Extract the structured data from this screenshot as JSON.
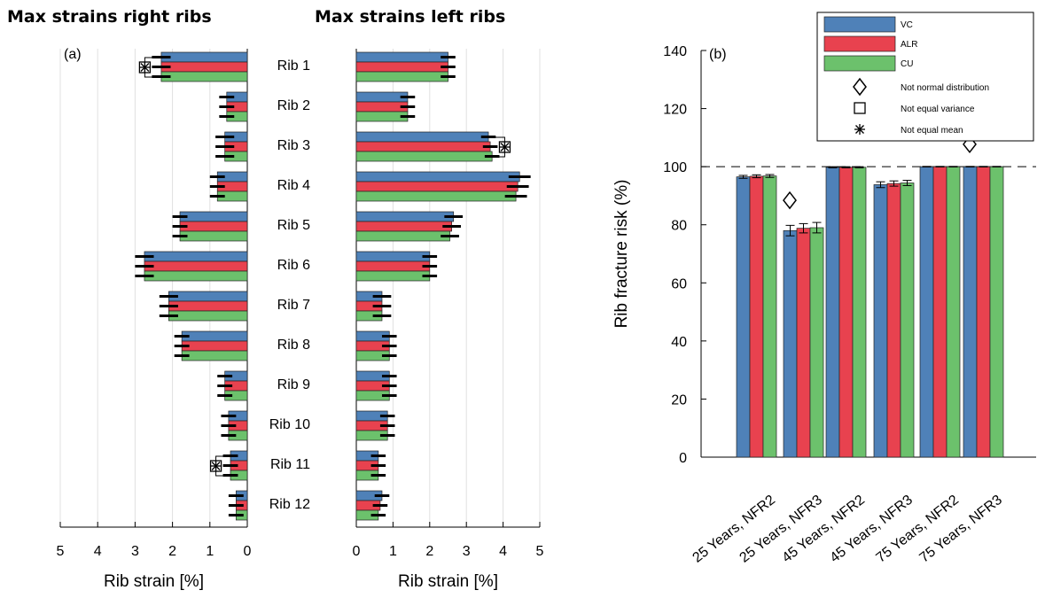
{
  "colors": {
    "VC": "#4f81b8",
    "ALR": "#e8424f",
    "CU": "#6cc16c"
  },
  "titles": {
    "right": "Max strains right ribs",
    "left": "Max strains left ribs"
  },
  "panel_labels": {
    "a": "(a)",
    "b": "(b)"
  },
  "chart_data": [
    {
      "type": "bar",
      "orientation": "horizontal",
      "title": "Max strains right ribs",
      "xlabel": "Rib strain [%]",
      "xlim": [
        0,
        5
      ],
      "x_reversed": true,
      "xticks": [
        "5",
        "4",
        "3",
        "2",
        "1",
        "0"
      ],
      "categories": [
        "Rib 1",
        "Rib 2",
        "Rib 3",
        "Rib 4",
        "Rib 5",
        "Rib 6",
        "Rib 7",
        "Rib 8",
        "Rib 9",
        "Rib 10",
        "Rib 11",
        "Rib 12"
      ],
      "series": [
        {
          "name": "VC",
          "values": [
            2.3,
            0.55,
            0.6,
            0.8,
            1.8,
            2.75,
            2.1,
            1.75,
            0.6,
            0.5,
            0.45,
            0.3
          ],
          "errors": [
            0.25,
            0.2,
            0.25,
            0.2,
            0.2,
            0.25,
            0.25,
            0.2,
            0.2,
            0.2,
            0.2,
            0.2
          ]
        },
        {
          "name": "ALR",
          "values": [
            2.3,
            0.55,
            0.6,
            0.8,
            1.8,
            2.75,
            2.1,
            1.75,
            0.6,
            0.5,
            0.45,
            0.3
          ],
          "errors": [
            0.25,
            0.2,
            0.25,
            0.2,
            0.2,
            0.25,
            0.25,
            0.2,
            0.2,
            0.2,
            0.2,
            0.2
          ]
        },
        {
          "name": "CU",
          "values": [
            2.3,
            0.55,
            0.6,
            0.8,
            1.8,
            2.75,
            2.1,
            1.75,
            0.6,
            0.5,
            0.45,
            0.3
          ],
          "errors": [
            0.25,
            0.2,
            0.25,
            0.2,
            0.2,
            0.25,
            0.25,
            0.2,
            0.2,
            0.2,
            0.2,
            0.2
          ]
        }
      ],
      "markers": [
        {
          "category": "Rib 1",
          "symbols": [
            "square",
            "star"
          ]
        },
        {
          "category": "Rib 11",
          "symbols": [
            "square",
            "star"
          ]
        }
      ],
      "grid": true
    },
    {
      "type": "bar",
      "orientation": "horizontal",
      "title": "Max strains left ribs",
      "xlabel": "Rib strain [%]",
      "xlim": [
        0,
        5
      ],
      "xticks": [
        "0",
        "1",
        "2",
        "3",
        "4",
        "5"
      ],
      "categories": [
        "Rib 1",
        "Rib 2",
        "Rib 3",
        "Rib 4",
        "Rib 5",
        "Rib 6",
        "Rib 7",
        "Rib 8",
        "Rib 9",
        "Rib 10",
        "Rib 11",
        "Rib 12"
      ],
      "series": [
        {
          "name": "VC",
          "values": [
            2.5,
            1.4,
            3.6,
            4.45,
            2.65,
            2.0,
            0.7,
            0.9,
            0.9,
            0.85,
            0.6,
            0.7
          ],
          "errors": [
            0.2,
            0.2,
            0.2,
            0.3,
            0.25,
            0.2,
            0.25,
            0.2,
            0.2,
            0.2,
            0.2,
            0.2
          ]
        },
        {
          "name": "ALR",
          "values": [
            2.5,
            1.4,
            3.65,
            4.4,
            2.6,
            2.0,
            0.7,
            0.9,
            0.9,
            0.85,
            0.6,
            0.65
          ],
          "errors": [
            0.2,
            0.2,
            0.2,
            0.3,
            0.25,
            0.2,
            0.25,
            0.2,
            0.2,
            0.2,
            0.2,
            0.2
          ]
        },
        {
          "name": "CU",
          "values": [
            2.5,
            1.4,
            3.7,
            4.35,
            2.55,
            2.0,
            0.7,
            0.9,
            0.9,
            0.85,
            0.6,
            0.6
          ],
          "errors": [
            0.2,
            0.2,
            0.2,
            0.3,
            0.25,
            0.2,
            0.25,
            0.2,
            0.2,
            0.2,
            0.2,
            0.2
          ]
        }
      ],
      "markers": [
        {
          "category": "Rib 3",
          "symbols": [
            "square",
            "star"
          ]
        }
      ],
      "grid": true
    },
    {
      "type": "bar",
      "ylabel": "Rib fracture risk (%)",
      "ylim": [
        0,
        140
      ],
      "yticks": [
        "0",
        "20",
        "40",
        "60",
        "80",
        "100",
        "120",
        "140"
      ],
      "reference_line": 100,
      "categories": [
        "25 Years, NFR2",
        "25 Years, NFR3",
        "45 Years, NFR2",
        "45 Years, NFR3",
        "75 Years, NFR2",
        "75 Years, NFR3"
      ],
      "series": [
        {
          "name": "VC",
          "values": [
            96.5,
            78,
            99.8,
            93.8,
            100,
            100
          ],
          "errors": [
            0.5,
            1.8,
            0.2,
            1.0,
            0.1,
            0.1
          ]
        },
        {
          "name": "ALR",
          "values": [
            96.7,
            78.8,
            99.8,
            94.2,
            100,
            100
          ],
          "errors": [
            0.5,
            1.6,
            0.2,
            0.9,
            0.1,
            0.1
          ]
        },
        {
          "name": "CU",
          "values": [
            96.8,
            79,
            99.8,
            94.4,
            100,
            100
          ],
          "errors": [
            0.5,
            1.8,
            0.2,
            0.9,
            0.1,
            0.1
          ]
        }
      ],
      "markers": [
        {
          "category": "25 Years, NFR3",
          "symbols": [
            "diamond"
          ]
        },
        {
          "category": "75 Years, NFR3",
          "symbols": [
            "diamond"
          ]
        }
      ],
      "legend": {
        "placement": "top-right",
        "entries": [
          "VC",
          "ALR",
          "CU"
        ],
        "symbol_entries": [
          {
            "symbol": "diamond",
            "label": "Not normal distribution"
          },
          {
            "symbol": "square",
            "label": "Not equal variance"
          },
          {
            "symbol": "star",
            "label": "Not equal mean"
          }
        ]
      },
      "grid": false
    }
  ]
}
